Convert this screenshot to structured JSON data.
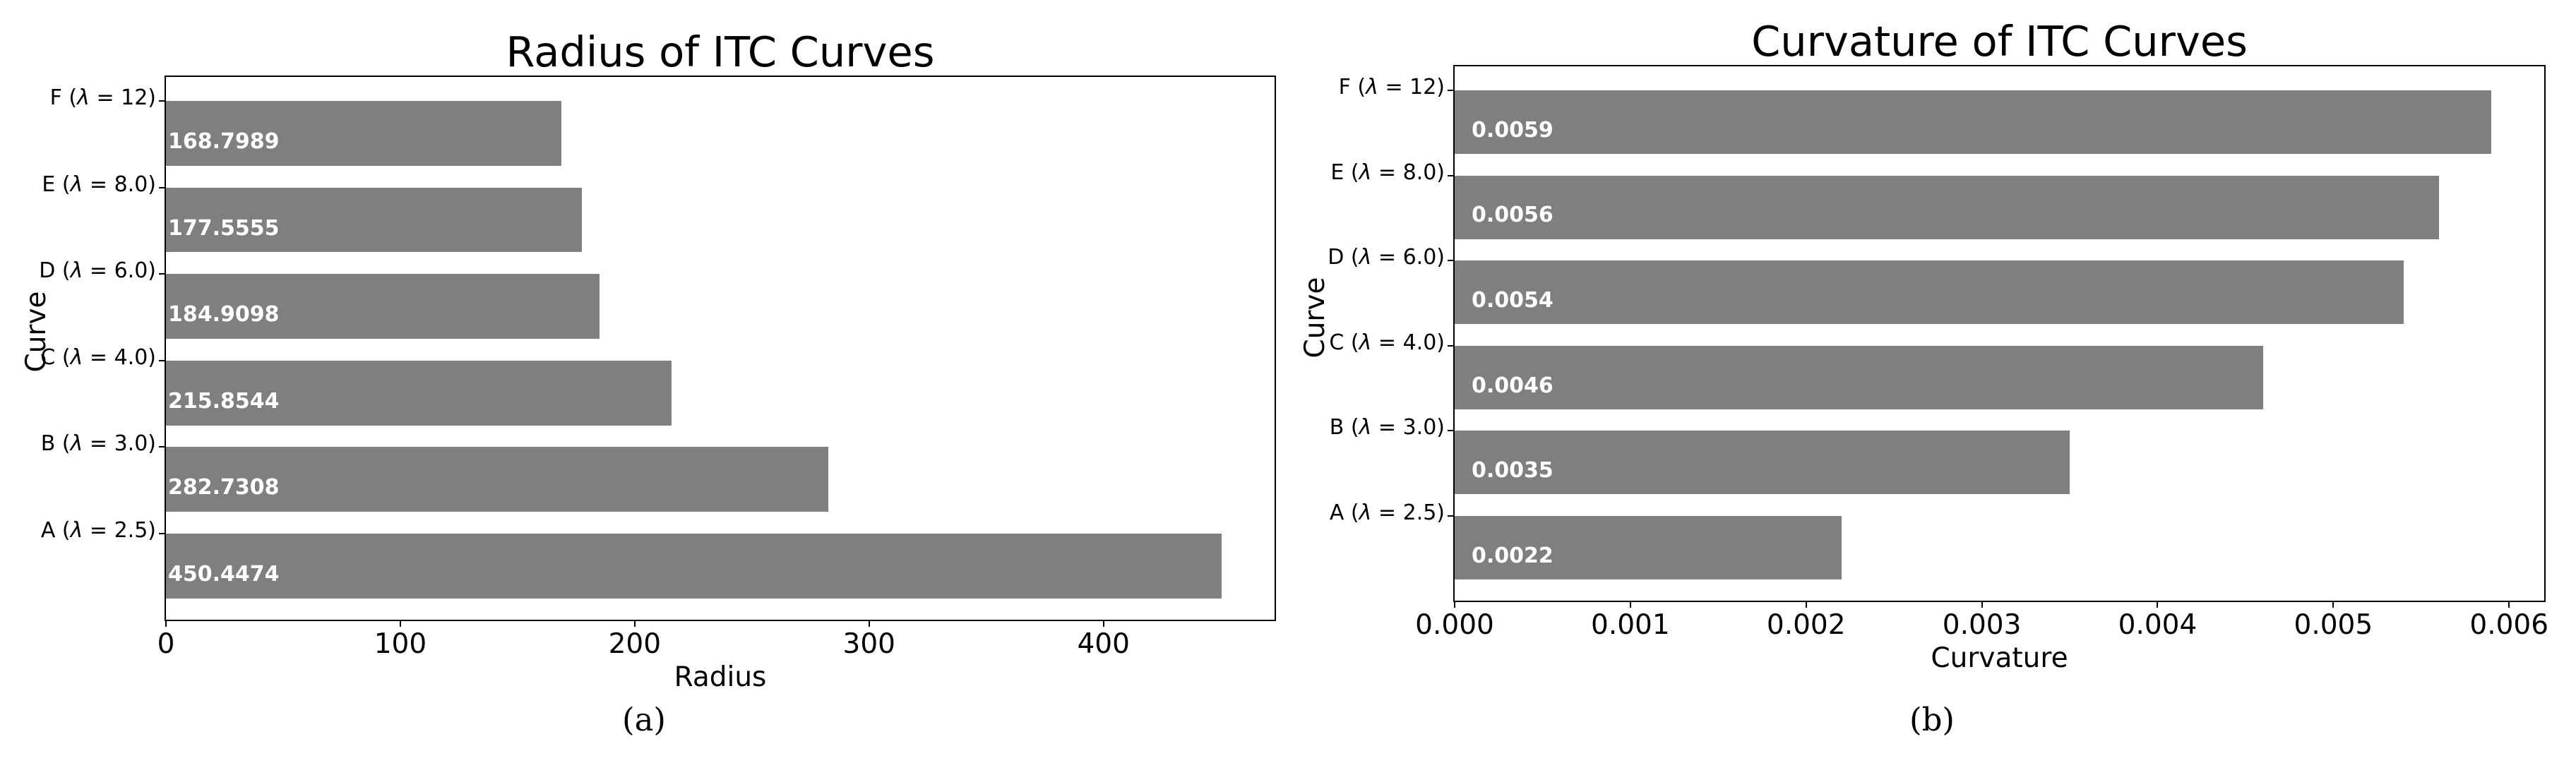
{
  "figure": {
    "background": "#ffffff",
    "captions": [
      {
        "label": "(a)"
      },
      {
        "label": "(b)"
      }
    ]
  },
  "chart_data": [
    {
      "type": "bar",
      "orientation": "horizontal",
      "title": "Radius of ITC Curves",
      "xlabel": "Radius",
      "ylabel": "Curve",
      "caption": "(a)",
      "categories": [
        "F (λ = 12)",
        "E (λ = 8.0)",
        "D (λ = 6.0)",
        "C (λ = 4.0)",
        "B (λ = 3.0)",
        "A (λ = 2.5)"
      ],
      "category_parts": [
        {
          "letter": "F",
          "lambda": "12"
        },
        {
          "letter": "E",
          "lambda": "8.0"
        },
        {
          "letter": "D",
          "lambda": "6.0"
        },
        {
          "letter": "C",
          "lambda": "4.0"
        },
        {
          "letter": "B",
          "lambda": "3.0"
        },
        {
          "letter": "A",
          "lambda": "2.5"
        }
      ],
      "values": [
        168.7989,
        177.5555,
        184.9098,
        215.8544,
        282.7308,
        450.4474
      ],
      "bar_labels": [
        "168.7989",
        "177.5555",
        "184.9098",
        "215.8544",
        "282.7308",
        "450.4474"
      ],
      "xticks": [
        0,
        100,
        200,
        300,
        400
      ],
      "xtick_labels": [
        "0",
        "100",
        "200",
        "300",
        "400"
      ],
      "xlim": [
        0,
        473
      ],
      "grid": false,
      "legend": null,
      "bar_color": "#7f7f7f",
      "bar_label_color": "#ffffff",
      "spine_color": "#000000"
    },
    {
      "type": "bar",
      "orientation": "horizontal",
      "title": "Curvature of ITC Curves",
      "xlabel": "Curvature",
      "ylabel": "Curve",
      "caption": "(b)",
      "categories": [
        "F (λ = 12)",
        "E (λ = 8.0)",
        "D (λ = 6.0)",
        "C (λ = 4.0)",
        "B (λ = 3.0)",
        "A (λ = 2.5)"
      ],
      "category_parts": [
        {
          "letter": "F",
          "lambda": "12"
        },
        {
          "letter": "E",
          "lambda": "8.0"
        },
        {
          "letter": "D",
          "lambda": "6.0"
        },
        {
          "letter": "C",
          "lambda": "4.0"
        },
        {
          "letter": "B",
          "lambda": "3.0"
        },
        {
          "letter": "A",
          "lambda": "2.5"
        }
      ],
      "values": [
        0.0059,
        0.0056,
        0.0054,
        0.0046,
        0.0035,
        0.0022
      ],
      "bar_labels": [
        "0.0059",
        "0.0056",
        "0.0054",
        "0.0046",
        "0.0035",
        "0.0022"
      ],
      "xticks": [
        0,
        0.001,
        0.002,
        0.003,
        0.004,
        0.005,
        0.006
      ],
      "xtick_labels": [
        "0.000",
        "0.001",
        "0.002",
        "0.003",
        "0.004",
        "0.005",
        "0.006"
      ],
      "xlim": [
        0,
        0.0062
      ],
      "grid": false,
      "legend": null,
      "bar_color": "#7f7f7f",
      "bar_label_color": "#ffffff",
      "spine_color": "#000000"
    }
  ]
}
